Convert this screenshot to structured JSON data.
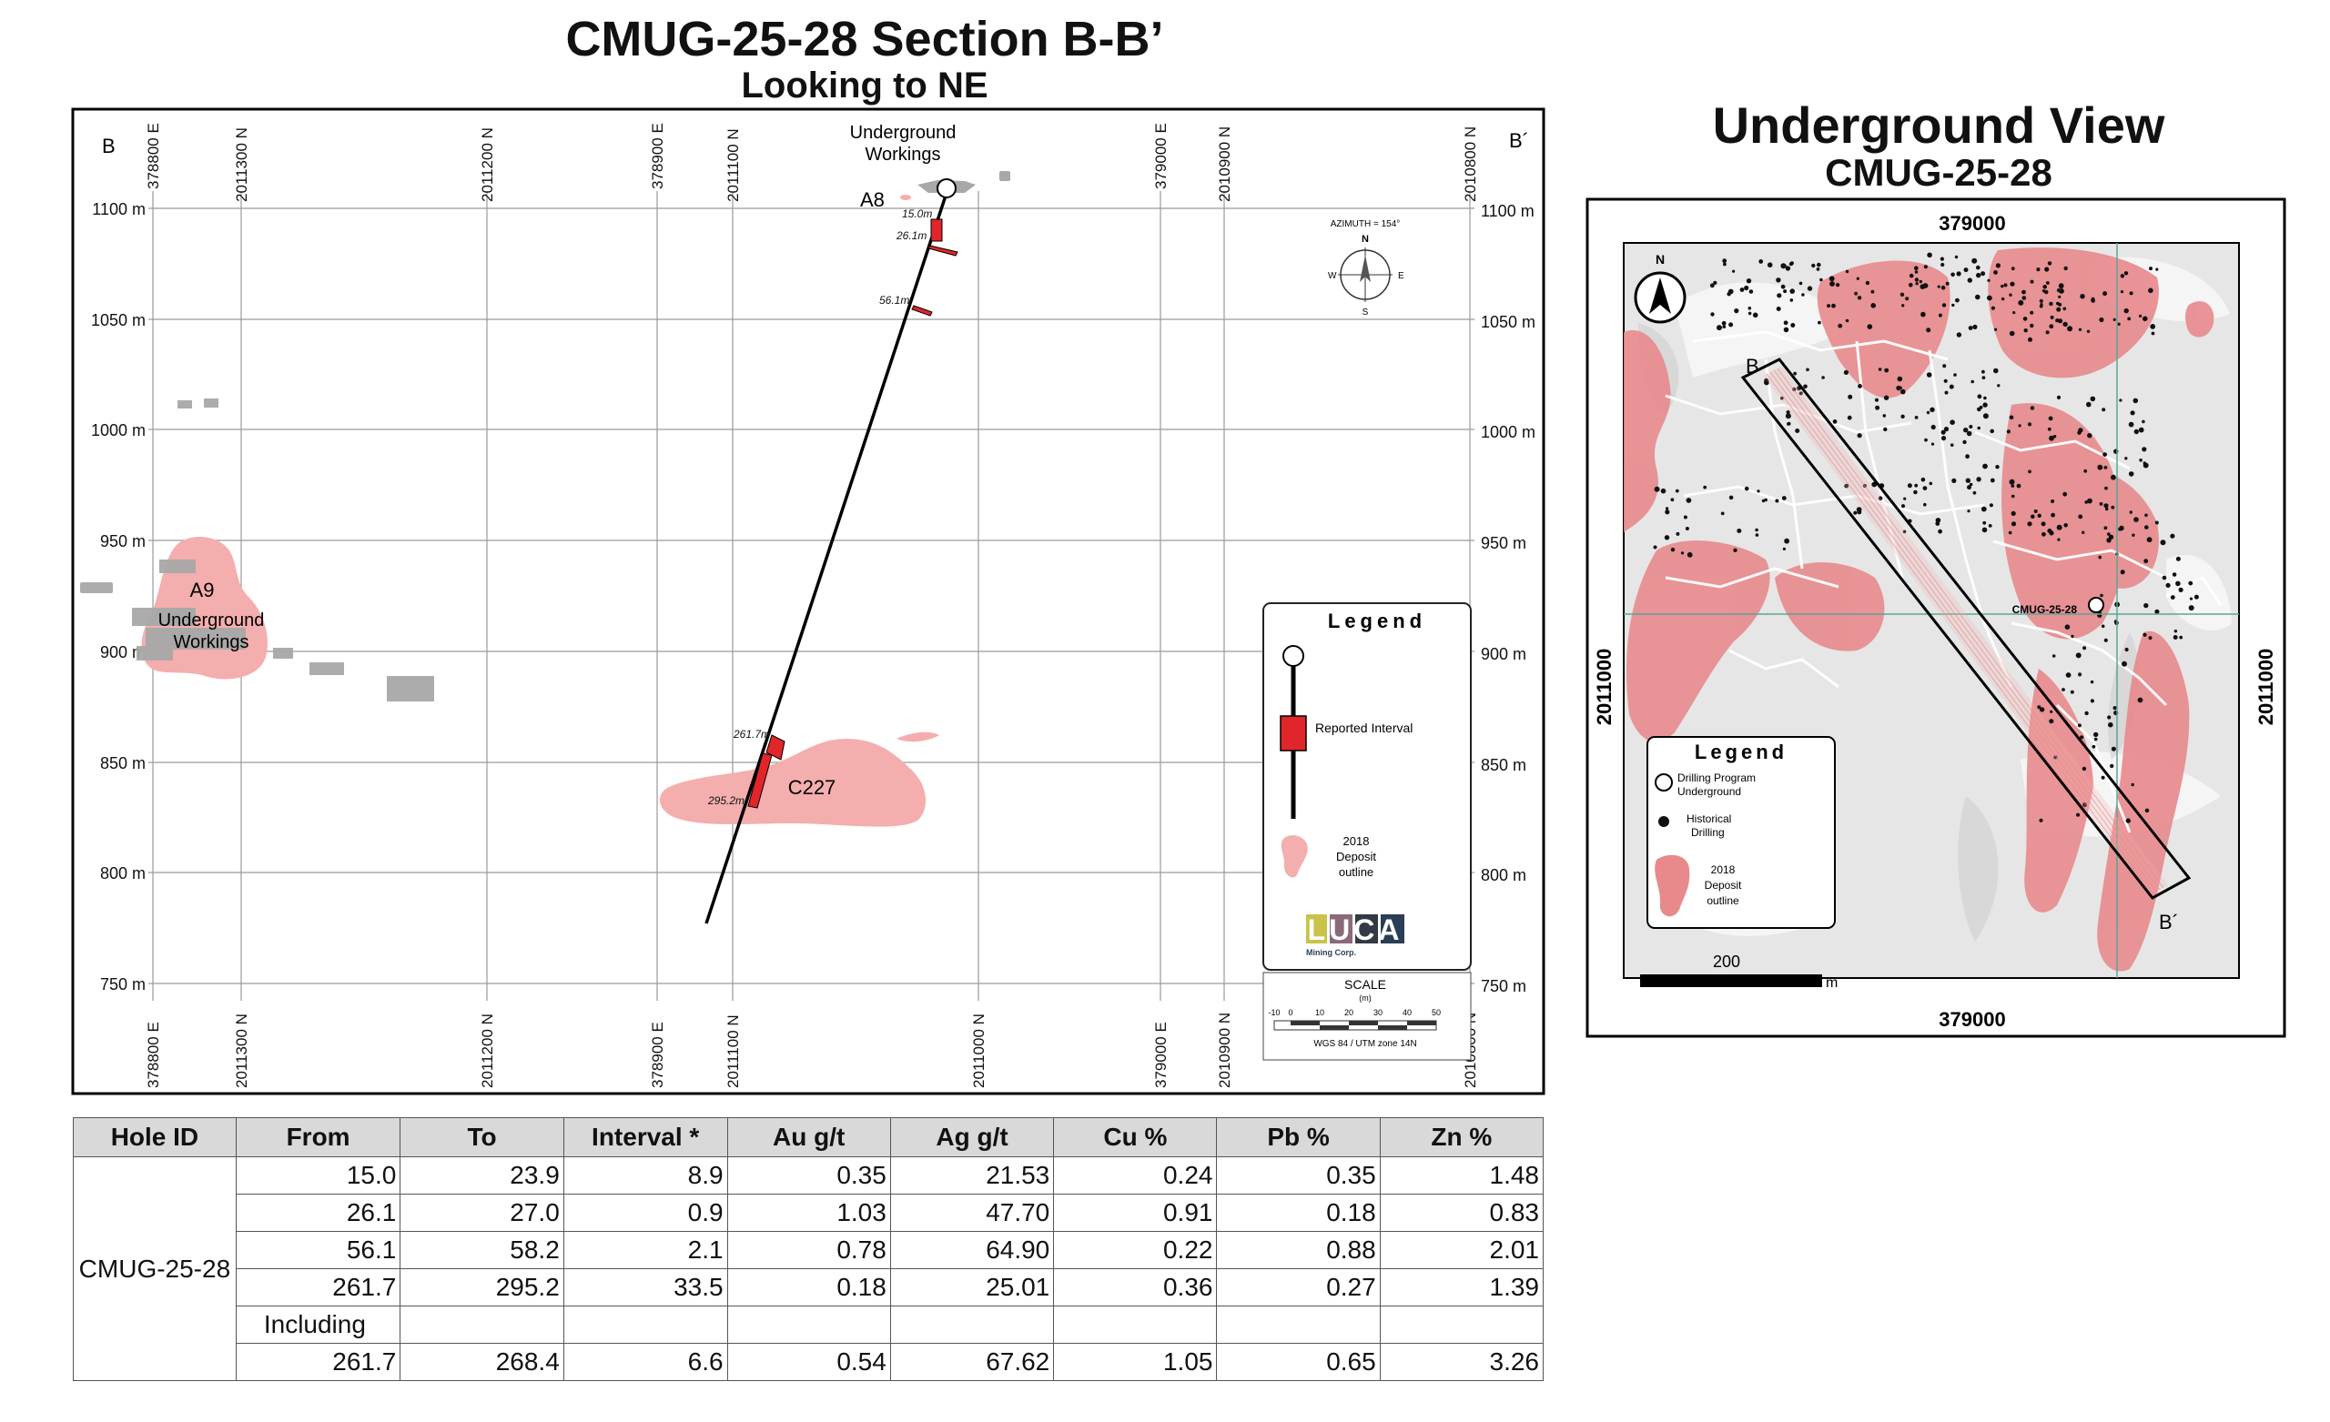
{
  "section": {
    "title": "CMUG-25-28 Section B-B’",
    "subtitle": "Looking to NE",
    "corner_left": "B",
    "corner_right": "B´",
    "elevations": [
      "1100 m",
      "1050 m",
      "1000 m",
      "950 m",
      "900 m",
      "850 m",
      "800 m",
      "750 m"
    ],
    "coord_labels": [
      "378800 E",
      "2011300 N",
      "2011200 N",
      "378900 E",
      "2011100 N",
      "2011000 N",
      "379000 E",
      "2010900 N",
      "2010800 N"
    ],
    "labels": {
      "underground_workings_top": [
        "Underground",
        "Workings"
      ],
      "a8": "A8",
      "a9": "A9",
      "underground_workings_left": [
        "Underground",
        "Workings"
      ],
      "c227": "C227"
    },
    "intercepts": [
      "15.0m",
      "26.1m",
      "56.1m",
      "261.7m",
      "295.2m"
    ],
    "north_arrow": {
      "azimuth": "AZIMUTH = 154°",
      "n": "N",
      "s": "S",
      "e": "E",
      "w": "W"
    },
    "legend": {
      "title": "Legend",
      "reported_interval": "Reported Interval",
      "deposit_outline": [
        "2018",
        "Deposit",
        "outline"
      ],
      "logo_text": "LUCA",
      "logo_sub": "Mining Corp."
    },
    "scale": {
      "title": "SCALE",
      "unit": "(m)",
      "ticks": [
        "-10",
        "0",
        "10",
        "20",
        "30",
        "40",
        "50"
      ],
      "datum": "WGS 84 / UTM zone 14N"
    }
  },
  "underground_view": {
    "title": "Underground View",
    "subtitle": "CMUG-25-28",
    "top_label": "379000",
    "bottom_label": "379000",
    "left_label": "2011000",
    "right_label": "2011000",
    "hole_label": "CMUG-25-28",
    "section_b": "B",
    "section_b_prime": "B´",
    "north": "N",
    "scale_value": "200",
    "scale_unit": "m",
    "legend": {
      "title": "Legend",
      "items": [
        [
          "Drilling Program",
          "Underground"
        ],
        [
          "Historical",
          "Drilling"
        ],
        [
          "2018",
          "Deposit",
          "outline"
        ]
      ]
    }
  },
  "table": {
    "headers": [
      "Hole ID",
      "From",
      "To",
      "Interval *",
      "Au g/t",
      "Ag g/t",
      "Cu %",
      "Pb %",
      "Zn %"
    ],
    "hole_id": "CMUG-25-28",
    "rows": [
      [
        "15.0",
        "23.9",
        "8.9",
        "0.35",
        "21.53",
        "0.24",
        "0.35",
        "1.48"
      ],
      [
        "26.1",
        "27.0",
        "0.9",
        "1.03",
        "47.70",
        "0.91",
        "0.18",
        "0.83"
      ],
      [
        "56.1",
        "58.2",
        "2.1",
        "0.78",
        "64.90",
        "0.22",
        "0.88",
        "2.01"
      ],
      [
        "261.7",
        "295.2",
        "33.5",
        "0.18",
        "25.01",
        "0.36",
        "0.27",
        "1.39"
      ]
    ],
    "including_label": "Including",
    "including_row": [
      "261.7",
      "268.4",
      "6.6",
      "0.54",
      "67.62",
      "1.05",
      "0.65",
      "3.26"
    ]
  },
  "colors": {
    "deposit": "#f4aeae",
    "deposit_map": "#e8898c",
    "interval": "#e0262a",
    "workings": "#a8a8a8",
    "grid": "#9a9a9a"
  }
}
